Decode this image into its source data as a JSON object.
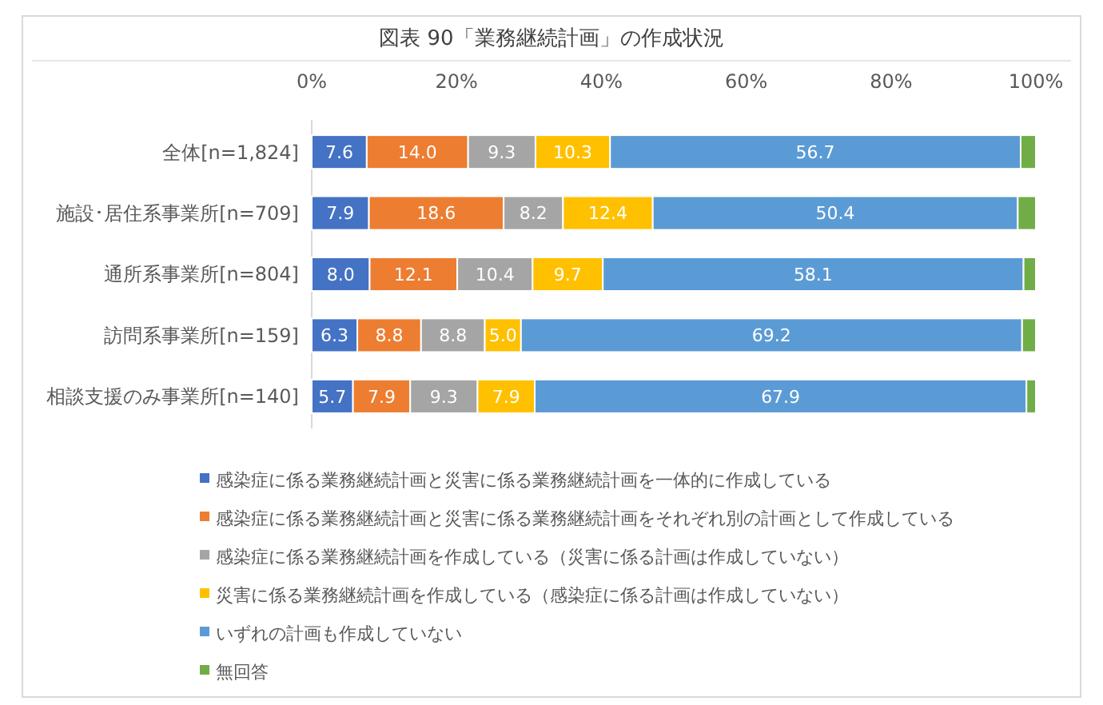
{
  "chart_data": {
    "type": "bar",
    "orientation": "horizontal",
    "stacked": true,
    "title": "図表 90「業務継続計画」の作成状況",
    "categories": [
      "全体[n=1,824]",
      "施設･居住系事業所[n=709]",
      "通所系事業所[n=804]",
      "訪問系事業所[n=159]",
      "相談支援のみ事業所[n=140]"
    ],
    "series": [
      {
        "name": "感染症に係る業務継続計画と災害に係る業務継続計画を一体的に作成している",
        "color": "#4472c4",
        "values": [
          7.6,
          7.9,
          8.0,
          6.3,
          5.7
        ],
        "value_labels": [
          "7.6",
          "7.9",
          "8.0",
          "6.3",
          "5.7"
        ]
      },
      {
        "name": "感染症に係る業務継続計画と災害に係る業務継続計画をそれぞれ別の計画として作成している",
        "color": "#ed7d31",
        "values": [
          14.0,
          18.6,
          12.1,
          8.8,
          7.9
        ],
        "value_labels": [
          "14.0",
          "18.6",
          "12.1",
          "8.8",
          "7.9"
        ]
      },
      {
        "name": "感染症に係る業務継続計画を作成している（災害に係る計画は作成していない）",
        "color": "#a5a5a5",
        "values": [
          9.3,
          8.2,
          10.4,
          8.8,
          9.3
        ],
        "value_labels": [
          "9.3",
          "8.2",
          "10.4",
          "8.8",
          "9.3"
        ]
      },
      {
        "name": "災害に係る業務継続計画を作成している（感染症に係る計画は作成していない）",
        "color": "#ffc000",
        "values": [
          10.3,
          12.4,
          9.7,
          5.0,
          7.9
        ],
        "value_labels": [
          "10.3",
          "12.4",
          "9.7",
          "5.0",
          "7.9"
        ]
      },
      {
        "name": "いずれの計画も作成していない",
        "color": "#5b9bd5",
        "values": [
          56.7,
          50.4,
          58.1,
          69.2,
          67.9
        ],
        "value_labels": [
          "56.7",
          "50.4",
          "58.1",
          "69.2",
          "67.9"
        ]
      },
      {
        "name": "無回答",
        "color": "#70ad47",
        "values": [
          2.1,
          2.5,
          1.7,
          1.9,
          1.3
        ],
        "value_labels": [
          null,
          null,
          null,
          null,
          null
        ]
      }
    ],
    "xlim": [
      0,
      100
    ],
    "xticks": [
      {
        "value": 0,
        "label": "0%"
      },
      {
        "value": 20,
        "label": "20%"
      },
      {
        "value": 40,
        "label": "40%"
      },
      {
        "value": 60,
        "label": "60%"
      },
      {
        "value": 80,
        "label": "80%"
      },
      {
        "value": 100,
        "label": "100%"
      }
    ],
    "legend": "bottom"
  }
}
